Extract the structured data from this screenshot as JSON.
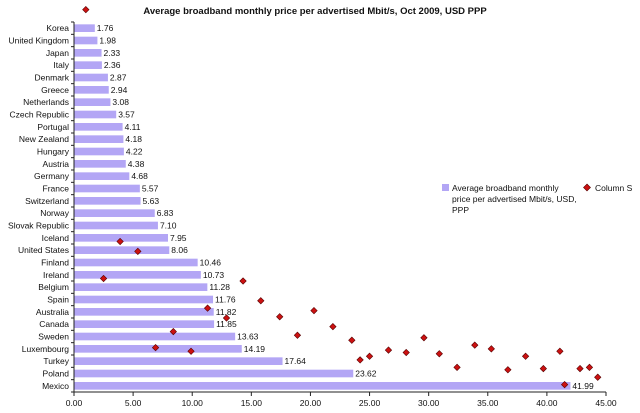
{
  "chart_data": {
    "type": "bar",
    "orientation": "horizontal",
    "title": "Average broadband monthly price per advertised Mbit/s, Oct 2009, USD PPP",
    "categories": [
      "Korea",
      "United Kingdom",
      "Japan",
      "Italy",
      "Denmark",
      "Greece",
      "Netherlands",
      "Czech Republic",
      "Portugal",
      "New Zealand",
      "Hungary",
      "Austria",
      "Germany",
      "France",
      "Switzerland",
      "Norway",
      "Slovak Republic",
      "Iceland",
      "United States",
      "Finland",
      "Ireland",
      "Belgium",
      "Spain",
      "Australia",
      "Canada",
      "Sweden",
      "Luxembourg",
      "Turkey",
      "Poland",
      "Mexico"
    ],
    "series": [
      {
        "name": "Average broadband monthly price per advertised Mbit/s, USD, PPP",
        "color": "#b3a6f5",
        "values": [
          1.76,
          1.98,
          2.33,
          2.36,
          2.87,
          2.94,
          3.08,
          3.57,
          4.11,
          4.18,
          4.22,
          4.38,
          4.68,
          5.57,
          5.63,
          6.83,
          7.1,
          7.95,
          8.06,
          10.46,
          10.73,
          11.28,
          11.76,
          11.82,
          11.85,
          13.63,
          14.19,
          17.64,
          23.62,
          41.99
        ],
        "labels": [
          "1.76",
          "1.98",
          "2.33",
          "2.36",
          "2.87",
          "2.94",
          "3.08",
          "3.57",
          "4.11",
          "4.18",
          "4.22",
          "4.38",
          "4.68",
          "5.57",
          "5.63",
          "6.83",
          "7.10",
          "7.95",
          "8.06",
          "10.46",
          "10.73",
          "11.28",
          "11.76",
          "11.82",
          "11.85",
          "13.63",
          "14.19",
          "17.64",
          "23.62",
          "41.99"
        ]
      },
      {
        "name": "Column S",
        "type": "scatter",
        "color": "#cc1111",
        "points": [
          {
            "x": 1.0,
            "y": 31.0
          },
          {
            "x": 3.9,
            "y": 12.2
          },
          {
            "x": 5.4,
            "y": 11.4
          },
          {
            "x": 2.5,
            "y": 9.2
          },
          {
            "x": 14.3,
            "y": 9.0
          },
          {
            "x": 11.3,
            "y": 6.8
          },
          {
            "x": 12.9,
            "y": 6.0
          },
          {
            "x": 15.8,
            "y": 7.4
          },
          {
            "x": 17.4,
            "y": 6.1
          },
          {
            "x": 20.3,
            "y": 6.6
          },
          {
            "x": 18.9,
            "y": 4.6
          },
          {
            "x": 21.9,
            "y": 5.3
          },
          {
            "x": 8.4,
            "y": 4.9
          },
          {
            "x": 6.9,
            "y": 3.6
          },
          {
            "x": 9.9,
            "y": 3.3
          },
          {
            "x": 23.5,
            "y": 4.2
          },
          {
            "x": 25.0,
            "y": 2.9
          },
          {
            "x": 24.2,
            "y": 2.6
          },
          {
            "x": 26.6,
            "y": 3.4
          },
          {
            "x": 28.1,
            "y": 3.2
          },
          {
            "x": 29.6,
            "y": 4.4
          },
          {
            "x": 30.9,
            "y": 3.1
          },
          {
            "x": 32.4,
            "y": 2.0
          },
          {
            "x": 33.9,
            "y": 3.8
          },
          {
            "x": 35.3,
            "y": 3.5
          },
          {
            "x": 36.7,
            "y": 1.8
          },
          {
            "x": 38.2,
            "y": 2.9
          },
          {
            "x": 39.7,
            "y": 1.9
          },
          {
            "x": 41.1,
            "y": 3.3
          },
          {
            "x": 42.8,
            "y": 1.9
          },
          {
            "x": 44.3,
            "y": 1.2
          },
          {
            "x": 41.5,
            "y": 0.6
          },
          {
            "x": 43.6,
            "y": 2.0
          }
        ]
      }
    ],
    "xlim": [
      0,
      45
    ],
    "xticks": [
      "0.00",
      "5.00",
      "10.00",
      "15.00",
      "20.00",
      "25.00",
      "30.00",
      "35.00",
      "40.00",
      "45.00"
    ],
    "legend_position": "right",
    "grid": false
  }
}
